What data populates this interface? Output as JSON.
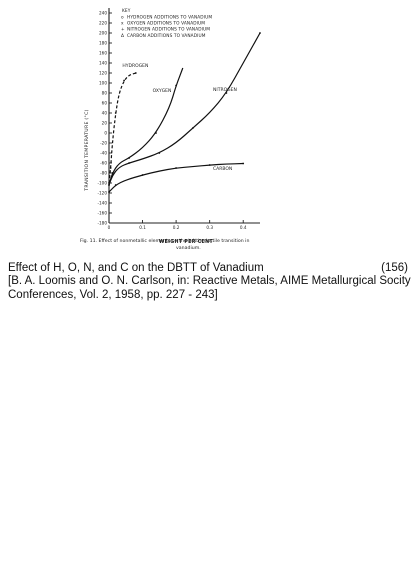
{
  "chart_data": {
    "type": "line",
    "xlabel": "WEIGHT PER CENT",
    "ylabel": "TRANSITION TEMPERATURE (°C)",
    "x_ticks": [
      "0",
      "0.1",
      "0.2",
      "0.3",
      "0.4"
    ],
    "y_ticks": [
      "-180",
      "-160",
      "-140",
      "-120",
      "-100",
      "-80",
      "-60",
      "-40",
      "-20",
      "0",
      "20",
      "40",
      "60",
      "80",
      "100",
      "120",
      "140",
      "160",
      "180",
      "200",
      "220",
      "240"
    ],
    "xlim": [
      0,
      0.45
    ],
    "ylim": [
      -180,
      240
    ],
    "key_title": "KEY",
    "key": [
      {
        "symbol": "o",
        "label": "HYDROGEN  ADDITIONS  TO  VANADIUM"
      },
      {
        "symbol": "x",
        "label": "OXYGEN  ADDITIONS  TO  VANADIUM"
      },
      {
        "symbol": "+",
        "label": "NITROGEN  ADDITIONS  TO  VANADIUM"
      },
      {
        "symbol": "Δ",
        "label": "CARBON  ADDITIONS  TO  VANADIUM"
      }
    ],
    "series": [
      {
        "name": "HYDROGEN",
        "dashed": true,
        "x": [
          0,
          0.005,
          0.01,
          0.02,
          0.03,
          0.045,
          0.06,
          0.08
        ],
        "y": [
          -100,
          -70,
          -20,
          40,
          80,
          105,
          116,
          120
        ]
      },
      {
        "name": "OXYGEN",
        "x": [
          0,
          0.01,
          0.03,
          0.06,
          0.1,
          0.14,
          0.18,
          0.2,
          0.22
        ],
        "y": [
          -104,
          -80,
          -60,
          -50,
          -30,
          0,
          50,
          95,
          130
        ]
      },
      {
        "name": "NITROGEN",
        "x": [
          0,
          0.01,
          0.03,
          0.06,
          0.1,
          0.15,
          0.2,
          0.25,
          0.3,
          0.35,
          0.4,
          0.45
        ],
        "y": [
          -104,
          -85,
          -68,
          -60,
          -52,
          -40,
          -20,
          10,
          40,
          80,
          140,
          200
        ]
      },
      {
        "name": "CARBON",
        "x": [
          0,
          0.02,
          0.05,
          0.1,
          0.15,
          0.2,
          0.25,
          0.3,
          0.35,
          0.4
        ],
        "y": [
          -118,
          -104,
          -94,
          -84,
          -76,
          -70,
          -67,
          -64,
          -62,
          -61
        ]
      }
    ],
    "series_labels": [
      "HYDROGEN",
      "OXYGEN",
      "NITROGEN",
      "CARBON"
    ],
    "figure_caption": [
      "Fig. 11.  Effect of nonmetallic elements on the brittle-ductile transition in",
      "vanadium."
    ]
  },
  "slide": {
    "title": "Effect of H, O, N, and C on the DBTT of Vanadium",
    "ref_number": "(156)",
    "citation_line1": "[B. A. Loomis and O. N. Carlson, in: Reactive Metals, AIME Metallurgical Socity",
    "citation_line2": "Conferences, Vol. 2, 1958, pp. 227 - 243]"
  }
}
